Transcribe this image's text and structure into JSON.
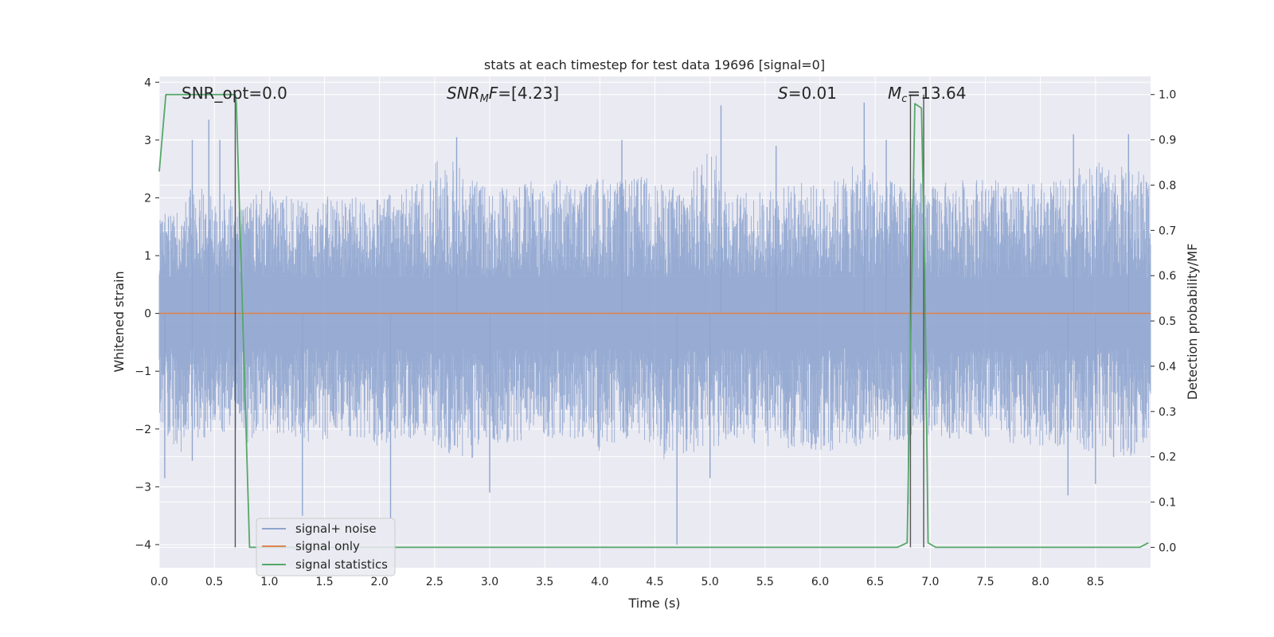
{
  "chart_data": {
    "type": "line",
    "title": "stats at each timestep for test data 19696 [signal=0]",
    "xlabel": "Time (s)",
    "ylabel": "Whitened strain",
    "y2label": "Detection probability/MF",
    "xlim": [
      0.0,
      9.0
    ],
    "ylim": [
      -4.4,
      4.1
    ],
    "y2lim": [
      -0.045,
      1.04
    ],
    "grid": true,
    "legend_position": "lower-left",
    "x_ticks": [
      "0.0",
      "0.5",
      "1.0",
      "1.5",
      "2.0",
      "2.5",
      "3.0",
      "3.5",
      "4.0",
      "4.5",
      "5.0",
      "5.5",
      "6.0",
      "6.5",
      "7.0",
      "7.5",
      "8.0",
      "8.5"
    ],
    "y_ticks": [
      "4",
      "3",
      "2",
      "1",
      "0",
      "−1",
      "−2",
      "−3",
      "−4"
    ],
    "y2_ticks": [
      "1.0",
      "0.9",
      "0.8",
      "0.7",
      "0.6",
      "0.5",
      "0.4",
      "0.3",
      "0.2",
      "0.1",
      "0.0"
    ],
    "annotations": {
      "snr_opt": "SNR_opt=0.0",
      "snr_mf_italic": "SNR",
      "snr_mf_sub": "M",
      "snr_mf_italic2": "F",
      "snr_mf_rest": "=[4.23]",
      "s_italic": "S",
      "s_rest": "=0.01",
      "mc_italic": "M",
      "mc_sub": "c",
      "mc_rest": "=13.64"
    },
    "series": [
      {
        "name": "signal+ noise",
        "color": "#8fa5cf",
        "envelope_x": [
          0.0,
          0.1,
          0.2,
          0.3,
          0.4,
          0.5,
          0.6,
          0.7,
          0.8,
          0.9,
          1.0,
          1.2,
          1.4,
          1.6,
          1.8,
          2.0,
          2.2,
          2.4,
          2.6,
          2.8,
          3.0,
          3.2,
          3.4,
          3.6,
          3.8,
          4.0,
          4.2,
          4.4,
          4.6,
          4.8,
          5.0,
          5.2,
          5.4,
          5.6,
          5.8,
          6.0,
          6.2,
          6.4,
          6.6,
          6.8,
          7.0,
          7.2,
          7.4,
          7.6,
          7.8,
          8.0,
          8.2,
          8.4,
          8.6,
          8.8,
          9.0
        ],
        "envelope_hi": [
          1.6,
          2.05,
          1.9,
          2.4,
          2.2,
          2.0,
          2.1,
          2.0,
          1.9,
          2.1,
          2.2,
          2.0,
          1.9,
          2.1,
          2.0,
          2.0,
          2.2,
          2.3,
          2.9,
          2.4,
          2.2,
          2.3,
          2.3,
          2.4,
          2.2,
          2.4,
          2.3,
          2.4,
          2.2,
          2.3,
          3.0,
          2.1,
          2.1,
          2.2,
          2.3,
          2.2,
          2.4,
          2.7,
          2.3,
          2.4,
          2.2,
          2.3,
          2.4,
          2.3,
          2.2,
          2.3,
          2.3,
          2.6,
          2.7,
          2.5,
          2.5
        ],
        "envelope_lo": [
          -2.0,
          -2.2,
          -2.4,
          -2.1,
          -2.2,
          -2.0,
          -2.1,
          -2.0,
          -2.3,
          -2.1,
          -2.0,
          -2.2,
          -2.3,
          -2.1,
          -2.2,
          -2.3,
          -2.2,
          -2.1,
          -2.4,
          -2.6,
          -2.2,
          -2.3,
          -2.1,
          -2.2,
          -2.2,
          -2.4,
          -2.3,
          -2.2,
          -2.6,
          -2.4,
          -2.5,
          -2.2,
          -2.3,
          -2.3,
          -2.4,
          -2.4,
          -2.4,
          -2.3,
          -2.2,
          -2.2,
          -2.1,
          -2.2,
          -2.1,
          -2.2,
          -2.3,
          -2.3,
          -2.3,
          -2.4,
          -2.5,
          -2.5,
          -2.3
        ],
        "spikes": [
          {
            "x": 0.3,
            "y": 3.0
          },
          {
            "x": 0.45,
            "y": 3.35
          },
          {
            "x": 0.55,
            "y": 3.0
          },
          {
            "x": 2.7,
            "y": 3.05
          },
          {
            "x": 4.2,
            "y": 3.0
          },
          {
            "x": 5.1,
            "y": 3.6
          },
          {
            "x": 5.6,
            "y": 2.9
          },
          {
            "x": 6.4,
            "y": 3.65
          },
          {
            "x": 6.6,
            "y": 3.0
          },
          {
            "x": 8.3,
            "y": 3.1
          },
          {
            "x": 8.8,
            "y": 3.1
          },
          {
            "x": 0.05,
            "y": -2.85
          },
          {
            "x": 0.3,
            "y": -2.55
          },
          {
            "x": 1.3,
            "y": -3.5
          },
          {
            "x": 2.1,
            "y": -3.55
          },
          {
            "x": 3.0,
            "y": -3.1
          },
          {
            "x": 4.7,
            "y": -4.0
          },
          {
            "x": 5.0,
            "y": -2.85
          },
          {
            "x": 6.8,
            "y": -3.3
          },
          {
            "x": 8.25,
            "y": -3.15
          },
          {
            "x": 8.5,
            "y": -2.95
          }
        ]
      },
      {
        "name": "signal only",
        "color": "#dd8452",
        "x": [
          0.0,
          9.0
        ],
        "y": [
          0.0,
          0.0
        ]
      },
      {
        "name": "signal statistics",
        "color": "#55a868",
        "axis": "right",
        "x": [
          0.0,
          0.06,
          0.12,
          0.2,
          0.3,
          0.4,
          0.5,
          0.6,
          0.69,
          0.7,
          0.82,
          1.0,
          2.0,
          3.0,
          4.0,
          5.0,
          6.0,
          6.7,
          6.79,
          6.86,
          6.92,
          6.95,
          6.98,
          7.05,
          7.5,
          8.0,
          8.5,
          8.9,
          8.98
        ],
        "y": [
          0.83,
          1.0,
          1.0,
          1.0,
          1.0,
          1.0,
          1.0,
          1.0,
          1.0,
          0.98,
          0.0,
          0.0,
          0.0,
          0.0,
          0.0,
          0.0,
          0.0,
          0.0,
          0.01,
          0.98,
          0.97,
          0.6,
          0.01,
          0.0,
          0.0,
          0.0,
          0.0,
          0.0,
          0.01
        ]
      }
    ],
    "vlines": [
      0.69,
      6.82,
      6.94
    ]
  }
}
